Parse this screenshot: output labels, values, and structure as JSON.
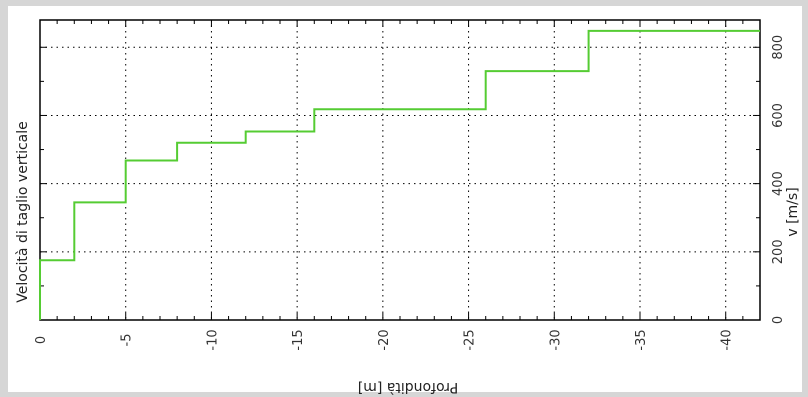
{
  "chart_data": {
    "type": "line",
    "step": true,
    "title": "",
    "xlabel": "Profondità [m]",
    "ylabel": "v [m/s]",
    "series_label": "Velocità di taglio verticale",
    "xlim": [
      0,
      -42
    ],
    "ylim": [
      0,
      880
    ],
    "x_ticks": [
      0,
      -5,
      -10,
      -15,
      -20,
      -25,
      -30,
      -35,
      -40
    ],
    "x_tick_labels": [
      "0",
      "-5",
      "-10",
      "-15",
      "-20",
      "-25",
      "-30",
      "-35",
      "-40"
    ],
    "y_ticks": [
      0,
      200,
      400,
      600,
      800
    ],
    "y_tick_labels": [
      "0",
      "200",
      "400",
      "600",
      "800"
    ],
    "grid": true,
    "line_color": "#55cc33",
    "series": [
      {
        "depth": [
          0,
          0,
          -2,
          -2,
          -5,
          -5,
          -8,
          -8,
          -12,
          -12,
          -16,
          -16,
          -26,
          -26,
          -32,
          -32,
          -42
        ],
        "values": [
          0,
          175,
          175,
          345,
          345,
          468,
          468,
          520,
          520,
          553,
          553,
          618,
          618,
          730,
          730,
          848,
          848
        ]
      }
    ]
  }
}
